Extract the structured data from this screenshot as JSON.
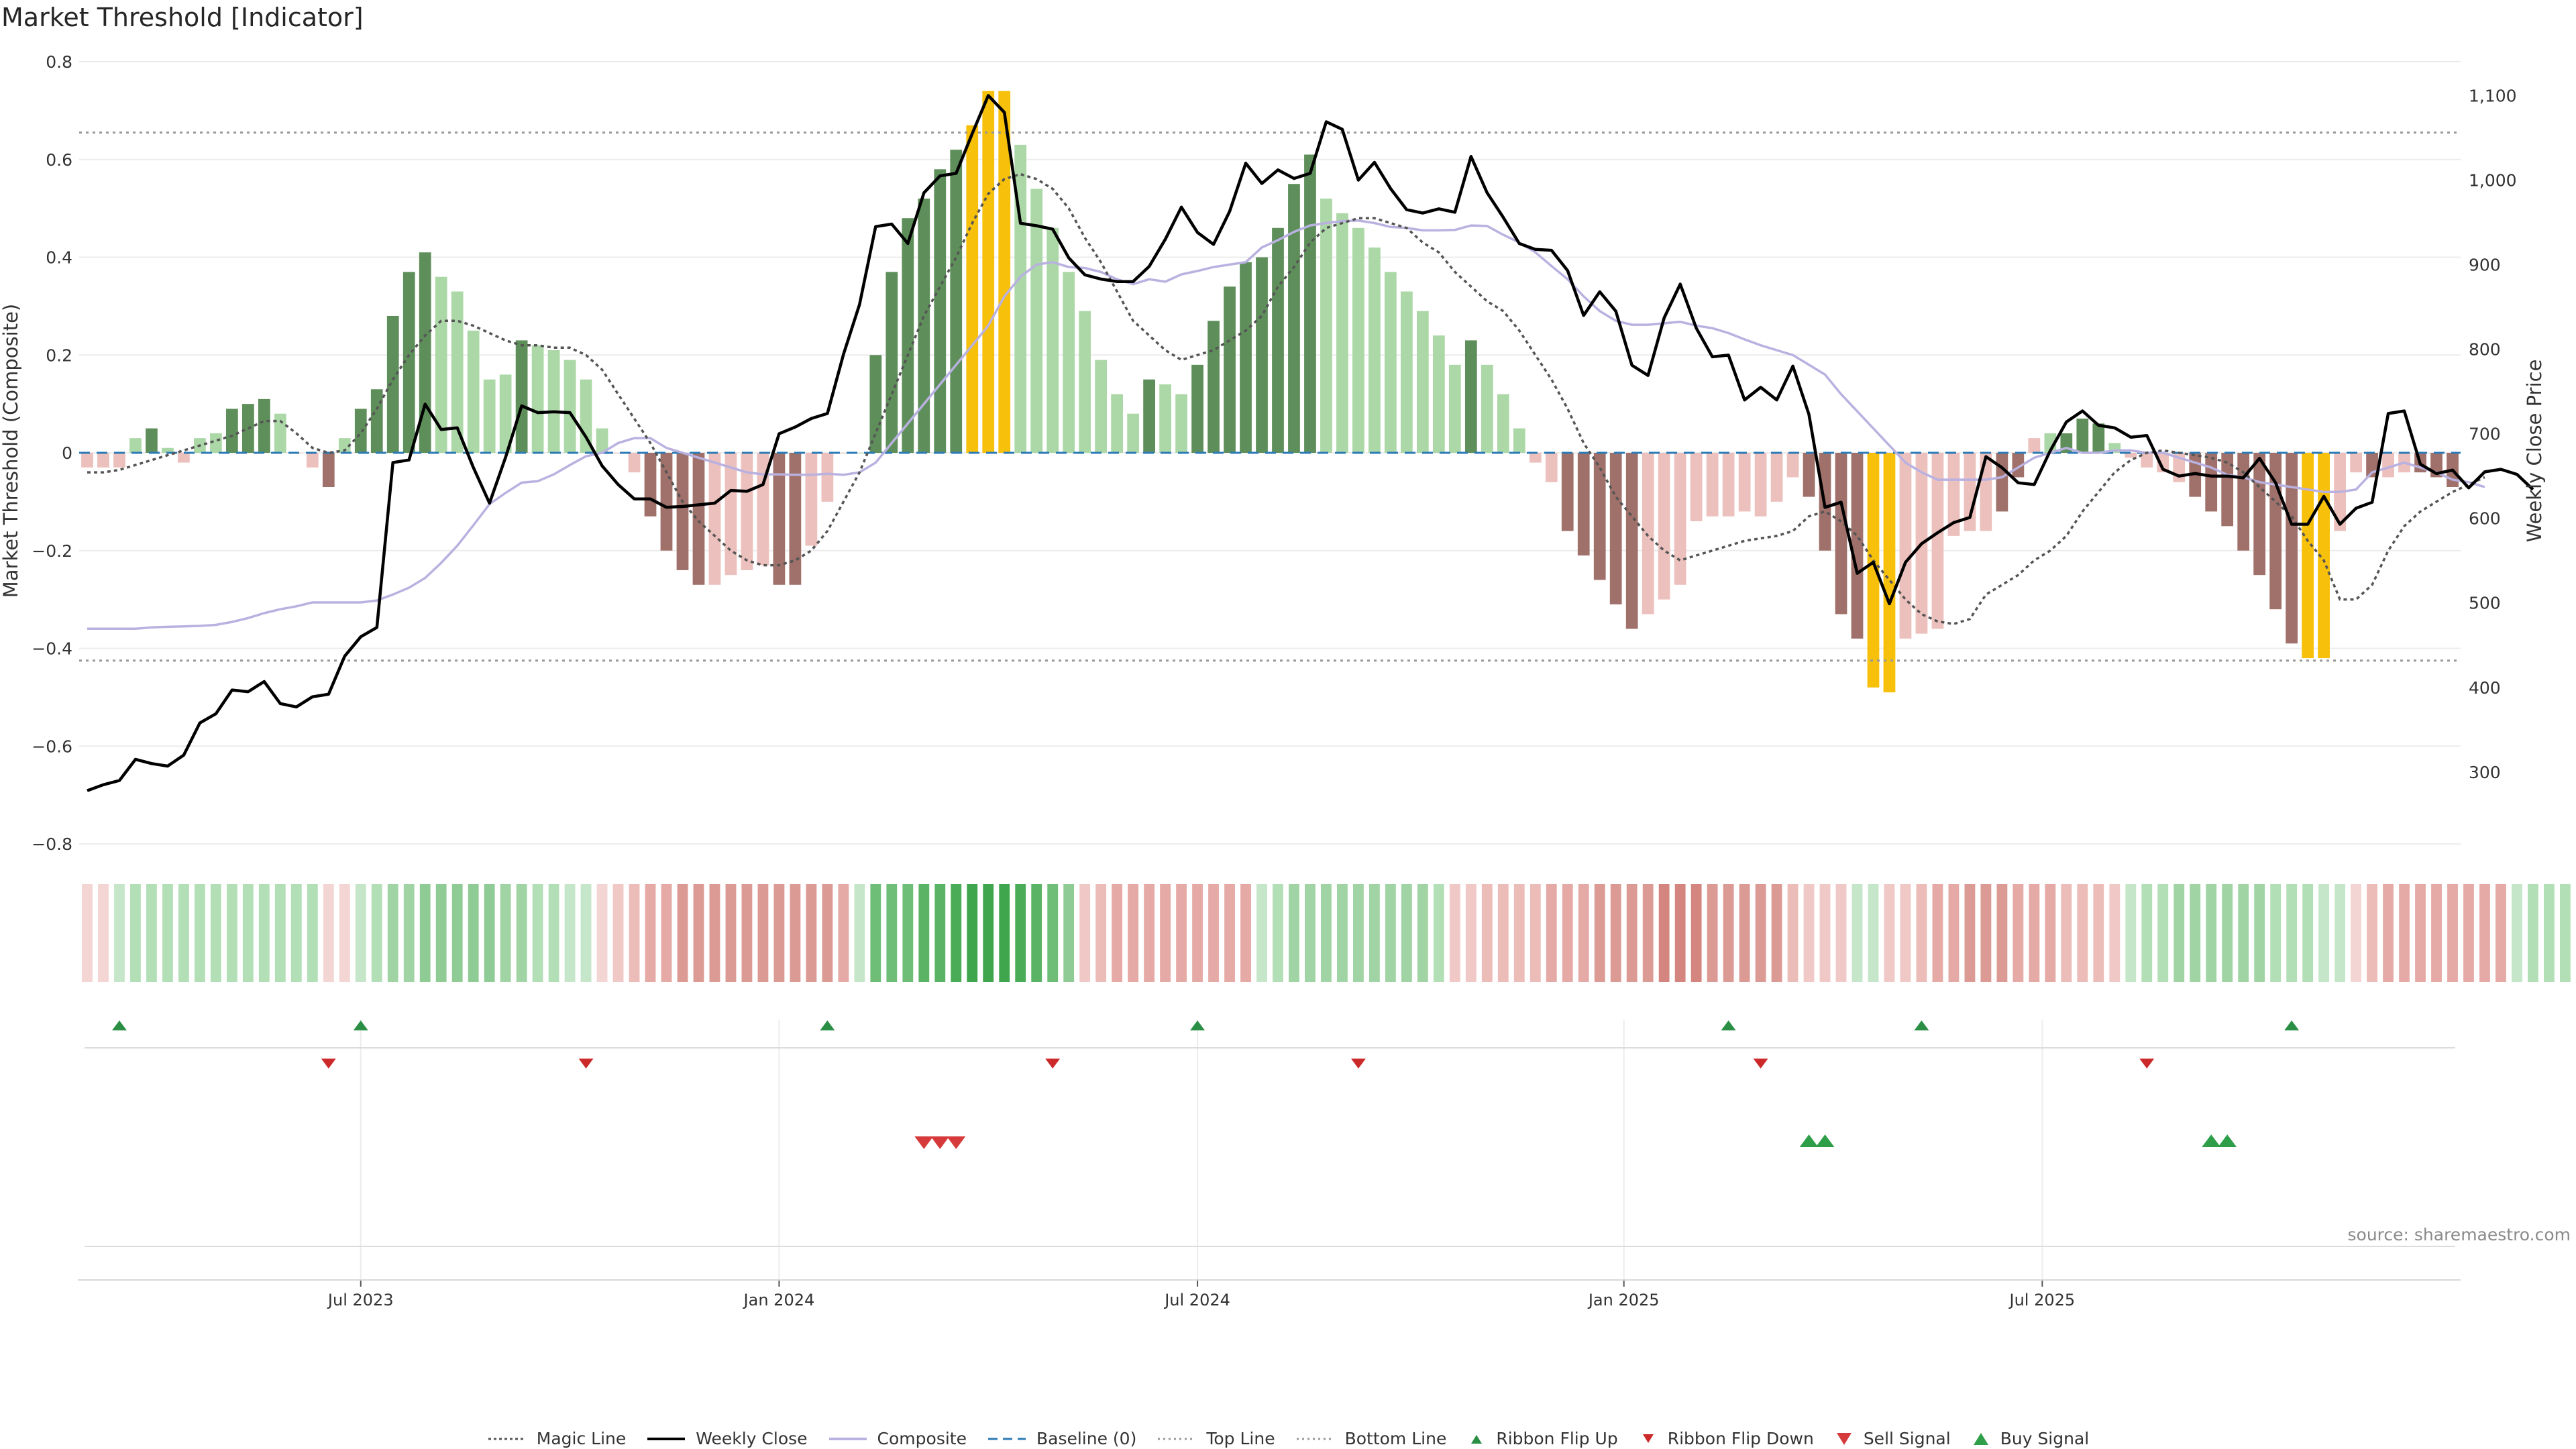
{
  "title": "Market Threshold [Indicator]",
  "source": "source: sharemaestro.com",
  "colors": {
    "bull_strong": "#5e8f5a",
    "bull_light": "#acd8a7",
    "bear_strong": "#a0706a",
    "bear_light": "#ecc0bc",
    "extreme": "#f7c00a",
    "close_line": "#000000",
    "composite_line": "#b9b1e0",
    "magic_line": "#555555",
    "baseline": "#2c7bb6",
    "buy": "#2e9e48",
    "sell": "#d63a3a",
    "ribbon_up": "#2a8f45",
    "ribbon_down": "#cc2a2a"
  },
  "chart_data": {
    "type": "bar",
    "title": "Market Threshold [Indicator]",
    "x_ticks": [
      "Jul 2023",
      "Jan 2024",
      "Jul 2024",
      "Jan 2025",
      "Jul 2025"
    ],
    "y_left": {
      "label": "Market Threshold (Composite)",
      "lim": [
        -0.8,
        0.8
      ],
      "ticks": [
        "0.8",
        "0.6",
        "0.4",
        "0.2",
        "0",
        "−0.2",
        "−0.4",
        "−0.6",
        "−0.8"
      ]
    },
    "y_right": {
      "label": "Weekly Close Price",
      "lim": [
        215,
        1140
      ],
      "ticks": [
        "1,100",
        "1,000",
        "900",
        "800",
        "700",
        "600",
        "500",
        "400",
        "300"
      ]
    },
    "top_line": 0.655,
    "bottom_line": -0.425,
    "baseline": 0,
    "series": [
      {
        "name": "Magic Line",
        "type": "line"
      },
      {
        "name": "Weekly Close",
        "type": "line"
      },
      {
        "name": "Composite",
        "type": "line"
      },
      {
        "name": "Baseline (0)",
        "type": "line"
      },
      {
        "name": "Top Line",
        "type": "line"
      },
      {
        "name": "Bottom Line",
        "type": "line"
      }
    ],
    "composite_bars": [
      -0.03,
      -0.03,
      -0.03,
      0.03,
      0.05,
      0.01,
      -0.02,
      0.03,
      0.04,
      0.09,
      0.1,
      0.11,
      0.08,
      0,
      -0.03,
      -0.07,
      0.03,
      0.09,
      0.13,
      0.28,
      0.37,
      0.41,
      0.36,
      0.33,
      0.25,
      0.15,
      0.16,
      0.23,
      0.22,
      0.21,
      0.19,
      0.15,
      0.05,
      0,
      -0.04,
      -0.13,
      -0.2,
      -0.24,
      -0.27,
      -0.27,
      -0.25,
      -0.24,
      -0.23,
      -0.27,
      -0.27,
      -0.19,
      -0.1,
      0,
      0,
      0.2,
      0.37,
      0.48,
      0.52,
      0.58,
      0.62,
      0.67,
      0.74,
      0.74,
      0.63,
      0.54,
      0.46,
      0.37,
      0.29,
      0.19,
      0.12,
      0.08,
      0.15,
      0.14,
      0.12,
      0.18,
      0.27,
      0.34,
      0.39,
      0.4,
      0.46,
      0.55,
      0.61,
      0.52,
      0.49,
      0.46,
      0.42,
      0.37,
      0.33,
      0.29,
      0.24,
      0.18,
      0.23,
      0.18,
      0.12,
      0.05,
      -0.02,
      -0.06,
      -0.16,
      -0.21,
      -0.26,
      -0.31,
      -0.36,
      -0.33,
      -0.3,
      -0.27,
      -0.14,
      -0.13,
      -0.13,
      -0.12,
      -0.13,
      -0.1,
      -0.05,
      -0.09,
      -0.2,
      -0.33,
      -0.38,
      -0.48,
      -0.49,
      -0.38,
      -0.37,
      -0.36,
      -0.17,
      -0.16,
      -0.16,
      -0.12,
      -0.05,
      0.03,
      0.04,
      0.04,
      0.07,
      0.06,
      0.02,
      -0.01,
      -0.03,
      -0.04,
      -0.06,
      -0.09,
      -0.12,
      -0.15,
      -0.2,
      -0.25,
      -0.32,
      -0.39,
      -0.42,
      -0.42,
      -0.16,
      -0.04,
      -0.05,
      -0.05,
      -0.04,
      -0.04,
      -0.05,
      -0.07
    ],
    "bar_classes": [
      "bl",
      "bl",
      "bl",
      "gl",
      "gs",
      "gl",
      "bl",
      "gl",
      "gl",
      "gs",
      "gs",
      "gs",
      "gl",
      "bl",
      "bl",
      "bs",
      "gl",
      "gs",
      "gs",
      "gs",
      "gs",
      "gs",
      "gl",
      "gl",
      "gl",
      "gl",
      "gl",
      "gs",
      "gl",
      "gl",
      "gl",
      "gl",
      "gl",
      "bl",
      "bl",
      "bs",
      "bs",
      "bs",
      "bs",
      "bl",
      "bl",
      "bl",
      "bl",
      "bs",
      "bs",
      "bl",
      "bl",
      "bl",
      "gl",
      "gs",
      "gs",
      "gs",
      "gs",
      "gs",
      "gs",
      "y",
      "y",
      "y",
      "gl",
      "gl",
      "gl",
      "gl",
      "gl",
      "gl",
      "gl",
      "gl",
      "gs",
      "gl",
      "gl",
      "gs",
      "gs",
      "gs",
      "gs",
      "gs",
      "gs",
      "gs",
      "gs",
      "gl",
      "gl",
      "gl",
      "gl",
      "gl",
      "gl",
      "gl",
      "gl",
      "gl",
      "gs",
      "gl",
      "gl",
      "gl",
      "bl",
      "bl",
      "bs",
      "bs",
      "bs",
      "bs",
      "bs",
      "bl",
      "bl",
      "bl",
      "bl",
      "bl",
      "bl",
      "bl",
      "bl",
      "bl",
      "bl",
      "bs",
      "bs",
      "bs",
      "bs",
      "y",
      "y",
      "bl",
      "bl",
      "bl",
      "bl",
      "bl",
      "bl",
      "bs",
      "bs",
      "bl",
      "gl",
      "gs",
      "gs",
      "gs",
      "gl",
      "bl",
      "bl",
      "bl",
      "bl",
      "bs",
      "bs",
      "bs",
      "bs",
      "bs",
      "bs",
      "bs",
      "y",
      "y",
      "bl",
      "bl",
      "bs",
      "bl",
      "bl",
      "bs",
      "bs",
      "bs"
    ],
    "weekly_close": [
      278,
      285,
      290,
      315,
      310,
      307,
      320,
      358,
      369,
      397,
      395,
      407,
      381,
      377,
      389,
      392,
      437,
      460,
      471,
      666,
      669,
      735,
      705,
      707,
      660,
      618,
      672,
      733,
      725,
      726,
      725,
      696,
      662,
      640,
      623,
      623,
      613,
      614,
      616,
      618,
      633,
      632,
      640,
      700,
      708,
      718,
      724,
      794,
      853,
      945,
      948,
      925,
      985,
      1005,
      1008,
      1055,
      1100,
      1080,
      949,
      946,
      942,
      908,
      888,
      883,
      880,
      880,
      898,
      930,
      968,
      938,
      924,
      963,
      1020,
      996,
      1012,
      1002,
      1008,
      1069,
      1060,
      1000,
      1021,
      990,
      965,
      961,
      966,
      962,
      1028,
      985,
      956,
      925,
      918,
      917,
      893,
      840,
      868,
      845,
      781,
      769,
      837,
      877,
      825,
      791,
      793,
      740,
      755,
      740,
      780,
      723,
      613,
      619,
      535,
      548,
      499,
      548,
      570,
      583,
      595,
      601,
      673,
      660,
      642,
      640,
      680,
      714,
      727,
      710,
      707,
      696,
      698,
      658,
      650,
      653,
      650,
      650,
      648,
      671,
      642,
      593,
      593,
      626,
      593,
      612,
      619,
      724,
      727,
      664,
      653,
      657,
      636,
      655,
      658,
      652,
      634
    ],
    "composite_line": [
      -0.36,
      -0.36,
      -0.36,
      -0.36,
      -0.357,
      -0.356,
      -0.355,
      -0.354,
      -0.352,
      -0.346,
      -0.338,
      -0.328,
      -0.32,
      -0.314,
      -0.306,
      -0.306,
      -0.306,
      -0.306,
      -0.302,
      -0.29,
      -0.276,
      -0.256,
      -0.225,
      -0.19,
      -0.148,
      -0.105,
      -0.082,
      -0.061,
      -0.058,
      -0.044,
      -0.025,
      -0.007,
      0,
      0.02,
      0.03,
      0.03,
      0.01,
      0,
      -0.01,
      -0.02,
      -0.03,
      -0.04,
      -0.044,
      -0.044,
      -0.045,
      -0.045,
      -0.043,
      -0.045,
      -0.04,
      -0.02,
      0.02,
      0.06,
      0.1,
      0.14,
      0.18,
      0.22,
      0.26,
      0.32,
      0.36,
      0.385,
      0.39,
      0.38,
      0.378,
      0.37,
      0.355,
      0.345,
      0.355,
      0.35,
      0.365,
      0.372,
      0.38,
      0.385,
      0.39,
      0.42,
      0.435,
      0.452,
      0.465,
      0.47,
      0.474,
      0.475,
      0.47,
      0.462,
      0.46,
      0.455,
      0.455,
      0.456,
      0.465,
      0.464,
      0.446,
      0.43,
      0.41,
      0.382,
      0.355,
      0.32,
      0.29,
      0.27,
      0.262,
      0.262,
      0.265,
      0.268,
      0.26,
      0.255,
      0.245,
      0.232,
      0.22,
      0.21,
      0.2,
      0.18,
      0.16,
      0.12,
      0.085,
      0.05,
      0.015,
      -0.02,
      -0.04,
      -0.055,
      -0.055,
      -0.055,
      -0.055,
      -0.05,
      -0.03,
      -0.01,
      0,
      0.01,
      0,
      0,
      0.005,
      0.005,
      0,
      0,
      -0.01,
      -0.02,
      -0.03,
      -0.045,
      -0.05,
      -0.06,
      -0.065,
      -0.07,
      -0.075,
      -0.08,
      -0.08,
      -0.075,
      -0.04,
      -0.03,
      -0.02,
      -0.03,
      -0.04,
      -0.055,
      -0.06,
      -0.07
    ],
    "magic_line": [
      -0.04,
      -0.04,
      -0.035,
      -0.025,
      -0.015,
      -0.005,
      0.005,
      0.015,
      0.025,
      0.035,
      0.05,
      0.065,
      0.065,
      0.04,
      0.01,
      0,
      0.005,
      0.04,
      0.09,
      0.15,
      0.2,
      0.24,
      0.27,
      0.27,
      0.26,
      0.245,
      0.23,
      0.22,
      0.22,
      0.215,
      0.215,
      0.2,
      0.17,
      0.12,
      0.07,
      0.02,
      -0.04,
      -0.1,
      -0.14,
      -0.17,
      -0.2,
      -0.22,
      -0.23,
      -0.23,
      -0.22,
      -0.2,
      -0.16,
      -0.1,
      -0.04,
      0.04,
      0.12,
      0.2,
      0.28,
      0.34,
      0.4,
      0.47,
      0.53,
      0.56,
      0.57,
      0.56,
      0.54,
      0.5,
      0.44,
      0.39,
      0.33,
      0.27,
      0.24,
      0.21,
      0.19,
      0.2,
      0.21,
      0.23,
      0.25,
      0.28,
      0.34,
      0.38,
      0.43,
      0.46,
      0.47,
      0.48,
      0.48,
      0.47,
      0.46,
      0.43,
      0.41,
      0.37,
      0.34,
      0.31,
      0.29,
      0.25,
      0.2,
      0.15,
      0.09,
      0.02,
      -0.03,
      -0.09,
      -0.13,
      -0.17,
      -0.2,
      -0.22,
      -0.21,
      -0.2,
      -0.19,
      -0.18,
      -0.175,
      -0.17,
      -0.16,
      -0.13,
      -0.12,
      -0.14,
      -0.17,
      -0.22,
      -0.26,
      -0.3,
      -0.33,
      -0.345,
      -0.35,
      -0.34,
      -0.29,
      -0.27,
      -0.25,
      -0.22,
      -0.2,
      -0.17,
      -0.12,
      -0.08,
      -0.04,
      -0.015,
      0,
      0.005,
      0,
      -0.005,
      -0.01,
      -0.02,
      -0.04,
      -0.07,
      -0.1,
      -0.13,
      -0.18,
      -0.22,
      -0.3,
      -0.3,
      -0.27,
      -0.2,
      -0.15,
      -0.12,
      -0.1,
      -0.08,
      -0.065,
      -0.05
    ],
    "ribbon_colors": [
      "#f3d5d3",
      "#f3d5d3",
      "#c5e6c8",
      "#b3dfb7",
      "#b3dfb7",
      "#b3dfb7",
      "#b3dfb7",
      "#b3dfb7",
      "#b3dfb7",
      "#b3dfb7",
      "#b3dfb7",
      "#b3dfb7",
      "#b3dfb7",
      "#b3dfb7",
      "#b3dfb7",
      "#f3d5d3",
      "#f3d5d3",
      "#c5e6c8",
      "#b3dfb7",
      "#a0d4a4",
      "#a0d4a4",
      "#8fcb94",
      "#8fcb94",
      "#8fcb94",
      "#8fcb94",
      "#8fcb94",
      "#a0d4a4",
      "#a0d4a4",
      "#b3dfb7",
      "#b3dfb7",
      "#c5e6c8",
      "#c5e6c8",
      "#f3d5d3",
      "#f0c9c6",
      "#ecbcb9",
      "#e5aaa6",
      "#e5aaa6",
      "#dc9a95",
      "#dc9a95",
      "#dc9a95",
      "#dc9a95",
      "#dc9a95",
      "#dc9a95",
      "#dc9a95",
      "#dc9a95",
      "#dc9a95",
      "#dc9a95",
      "#e5aaa6",
      "#c5e6c8",
      "#6fbe78",
      "#6fbe78",
      "#6fbe78",
      "#5bb466",
      "#5bb466",
      "#4aac57",
      "#3fa64d",
      "#3fa64d",
      "#3fa64d",
      "#4aac57",
      "#5bb466",
      "#6fbe78",
      "#8fcb94",
      "#f0c9c6",
      "#ecbcb9",
      "#e5aaa6",
      "#e5aaa6",
      "#e5aaa6",
      "#e5aaa6",
      "#e5aaa6",
      "#e5aaa6",
      "#e5aaa6",
      "#e5aaa6",
      "#e5aaa6",
      "#c5e6c8",
      "#b3dfb7",
      "#a0d4a4",
      "#a0d4a4",
      "#a0d4a4",
      "#a0d4a4",
      "#a0d4a4",
      "#a0d4a4",
      "#a0d4a4",
      "#a0d4a4",
      "#a0d4a4",
      "#b3dfb7",
      "#f0c9c6",
      "#f0c9c6",
      "#ecbcb9",
      "#ecbcb9",
      "#ecbcb9",
      "#ecbcb9",
      "#e5aaa6",
      "#e5aaa6",
      "#e5aaa6",
      "#dc9a95",
      "#dc9a95",
      "#dc9a95",
      "#dc9a95",
      "#d4857f",
      "#d4857f",
      "#d4857f",
      "#dc9a95",
      "#dc9a95",
      "#dc9a95",
      "#dc9a95",
      "#dc9a95",
      "#ecbcb9",
      "#f0c9c6",
      "#f0c9c6",
      "#f0c9c6",
      "#c5e6c8",
      "#c5e6c8",
      "#f0c9c6",
      "#f0c9c6",
      "#ecbcb9",
      "#e5aaa6",
      "#e5aaa6",
      "#dc9a95",
      "#dc9a95",
      "#dc9a95",
      "#e5aaa6",
      "#e5aaa6",
      "#e5aaa6",
      "#ecbcb9",
      "#ecbcb9",
      "#ecbcb9",
      "#f0c9c6",
      "#c5e6c8",
      "#b3dfb7",
      "#b3dfb7",
      "#a0d4a4",
      "#a0d4a4",
      "#a0d4a4",
      "#a0d4a4",
      "#a0d4a4",
      "#a0d4a4",
      "#b3dfb7",
      "#b3dfb7",
      "#b3dfb7",
      "#c5e6c8",
      "#c5e6c8",
      "#f3d5d3",
      "#ecbcb9",
      "#e5aaa6",
      "#e5aaa6",
      "#e5aaa6",
      "#e5aaa6",
      "#e5aaa6",
      "#e5aaa6",
      "#e5aaa6",
      "#e5aaa6",
      "#c5e6c8",
      "#b3dfb7",
      "#b3dfb7",
      "#b3dfb7",
      "#b3dfb7",
      "#b3dfb7",
      "#b3dfb7",
      "#b3dfb7"
    ],
    "ribbon_flip_up": [
      2,
      17,
      46,
      69,
      102,
      114,
      137
    ],
    "ribbon_flip_down": [
      15,
      31,
      60,
      79,
      104,
      128
    ],
    "sell_signal": [
      52,
      53,
      54
    ],
    "buy_signal": [
      107,
      108,
      132,
      133
    ]
  },
  "legend": [
    {
      "label": "Magic Line",
      "kind": "dotted",
      "color": "#555555"
    },
    {
      "label": "Weekly Close",
      "kind": "solid",
      "color": "#000000"
    },
    {
      "label": "Composite",
      "kind": "solid",
      "color": "#b9b1e0"
    },
    {
      "label": "Baseline (0)",
      "kind": "dashed",
      "color": "#2c7bb6"
    },
    {
      "label": "Top Line",
      "kind": "dotted-light",
      "color": "#999999"
    },
    {
      "label": "Bottom Line",
      "kind": "dotted-light",
      "color": "#999999"
    },
    {
      "label": "Ribbon Flip Up",
      "kind": "tri-up-small",
      "color": "#2a8f45"
    },
    {
      "label": "Ribbon Flip Down",
      "kind": "tri-down-small",
      "color": "#cc2a2a"
    },
    {
      "label": "Sell Signal",
      "kind": "tri-down",
      "color": "#d63a3a"
    },
    {
      "label": "Buy Signal",
      "kind": "tri-up",
      "color": "#2e9e48"
    }
  ]
}
